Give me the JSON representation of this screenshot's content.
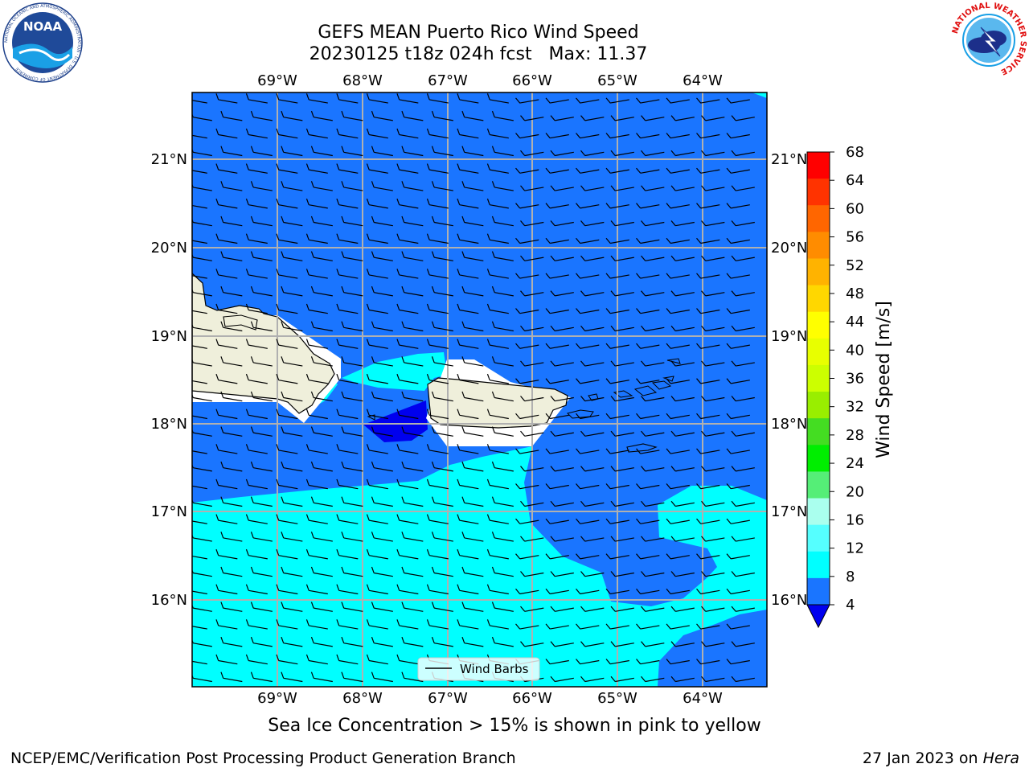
{
  "header": {
    "title_line1": "GEFS MEAN Puerto Rico Wind Speed",
    "title_line2": "20230125 t18z 024h fcst   Max: 11.37"
  },
  "logos": {
    "noaa": {
      "text": "NOAA",
      "ring": "NATIONAL OCEANIC AND ATMOSPHERIC ADMINISTRATION · U.S. DEPARTMENT OF COMMERCE"
    },
    "nws": {
      "ring": "NATIONAL WEATHER SERVICE"
    }
  },
  "map": {
    "lon_labels": [
      "69°W",
      "68°W",
      "67°W",
      "66°W",
      "65°W",
      "64°W"
    ],
    "lat_labels": [
      "21°N",
      "20°N",
      "19°N",
      "18°N",
      "17°N",
      "16°N"
    ],
    "legend_label": "Wind Barbs",
    "colors": {
      "ocean_4_8": "#1a75ff",
      "ocean_8_12": "#00ffff",
      "ocean_lt4": "#0000ee",
      "land": "#efefdb",
      "grid": "#b0b0b0"
    }
  },
  "colorbar": {
    "label": "Wind Speed [m/s]",
    "ticks": [
      "68",
      "64",
      "60",
      "56",
      "52",
      "48",
      "44",
      "40",
      "36",
      "32",
      "28",
      "24",
      "20",
      "16",
      "12",
      "8",
      "4"
    ],
    "colors": [
      "#ff0000",
      "#ff3300",
      "#ff6600",
      "#ff8c00",
      "#ffb300",
      "#ffd700",
      "#ffff00",
      "#e8ff00",
      "#ccff00",
      "#99ee00",
      "#44dd22",
      "#00ee00",
      "#55ee77",
      "#aaffee",
      "#55ffff",
      "#00ffff",
      "#1a75ff"
    ],
    "under_color": "#0000ee"
  },
  "caption": "Sea Ice Concentration > 15% is shown in pink to yellow",
  "footer": {
    "left": "NCEP/EMC/Verification Post Processing Product Generation Branch",
    "date": "27 Jan 2023 on ",
    "machine": "Hera"
  }
}
